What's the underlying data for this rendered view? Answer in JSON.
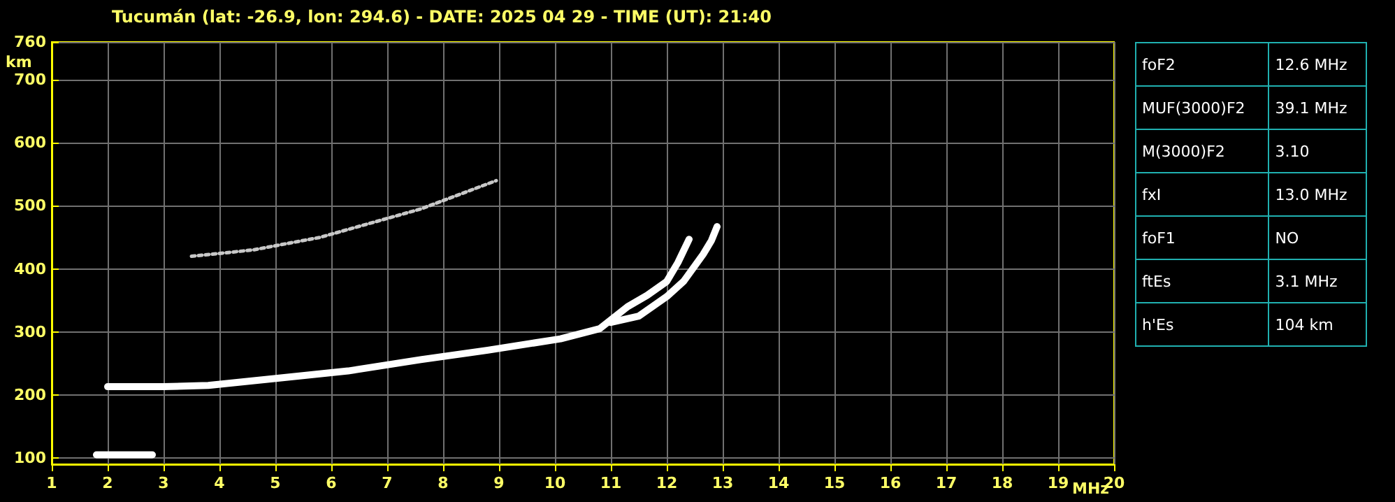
{
  "chart_data": [
    {
      "type": "line",
      "title": "Tucumán (lat: -26.9, lon: 294.6) - DATE: 2025 04 29 - TIME (UT): 21:40",
      "xlabel": "MHz",
      "ylabel": "km",
      "xlim": [
        1,
        20
      ],
      "xticks": [
        1,
        2,
        3,
        4,
        5,
        6,
        7,
        8,
        9,
        10,
        11,
        12,
        13,
        14,
        15,
        16,
        17,
        18,
        19,
        20
      ],
      "ylim": [
        90,
        760
      ],
      "yticks": [
        100,
        200,
        300,
        400,
        500,
        600,
        700,
        760
      ],
      "grid": true,
      "marker": "none",
      "line_style": "solid",
      "series": [
        {
          "color": "#ffffff",
          "x": [
            2.0,
            3.0,
            3.8,
            5.1,
            6.3,
            7.6,
            8.8,
            10.1,
            10.8,
            11.3,
            11.65,
            12.0,
            12.2,
            12.4
          ],
          "values": [
            213,
            213,
            215,
            227,
            238,
            256,
            271,
            289,
            305,
            340,
            358,
            380,
            410,
            447
          ]
        },
        {
          "color": "#ffffff",
          "x": [
            11.0,
            11.5,
            12.0,
            12.3,
            12.65,
            12.8,
            12.9
          ],
          "values": [
            315,
            325,
            356,
            380,
            423,
            445,
            467
          ]
        },
        {
          "color": "#ffffff",
          "x": [
            1.8,
            2.8
          ],
          "values": [
            105,
            105
          ]
        },
        {
          "color": "#c8c8c8",
          "line_style": "dotted",
          "x": [
            3.5,
            4.6,
            5.8,
            6.8,
            7.6,
            8.95
          ],
          "values": [
            420,
            430,
            450,
            475,
            495,
            540
          ]
        }
      ]
    },
    {
      "type": "other",
      "categories": [
        "foF2",
        "MUF(3000)F2",
        "M(3000)F2",
        "fxI",
        "foF1",
        "ftEs",
        "h'Es"
      ],
      "value_labels": [
        "12.6 MHz",
        "39.1 MHz",
        "3.10",
        "13.0 MHz",
        "NO",
        "3.1 MHz",
        "104 km"
      ]
    }
  ]
}
